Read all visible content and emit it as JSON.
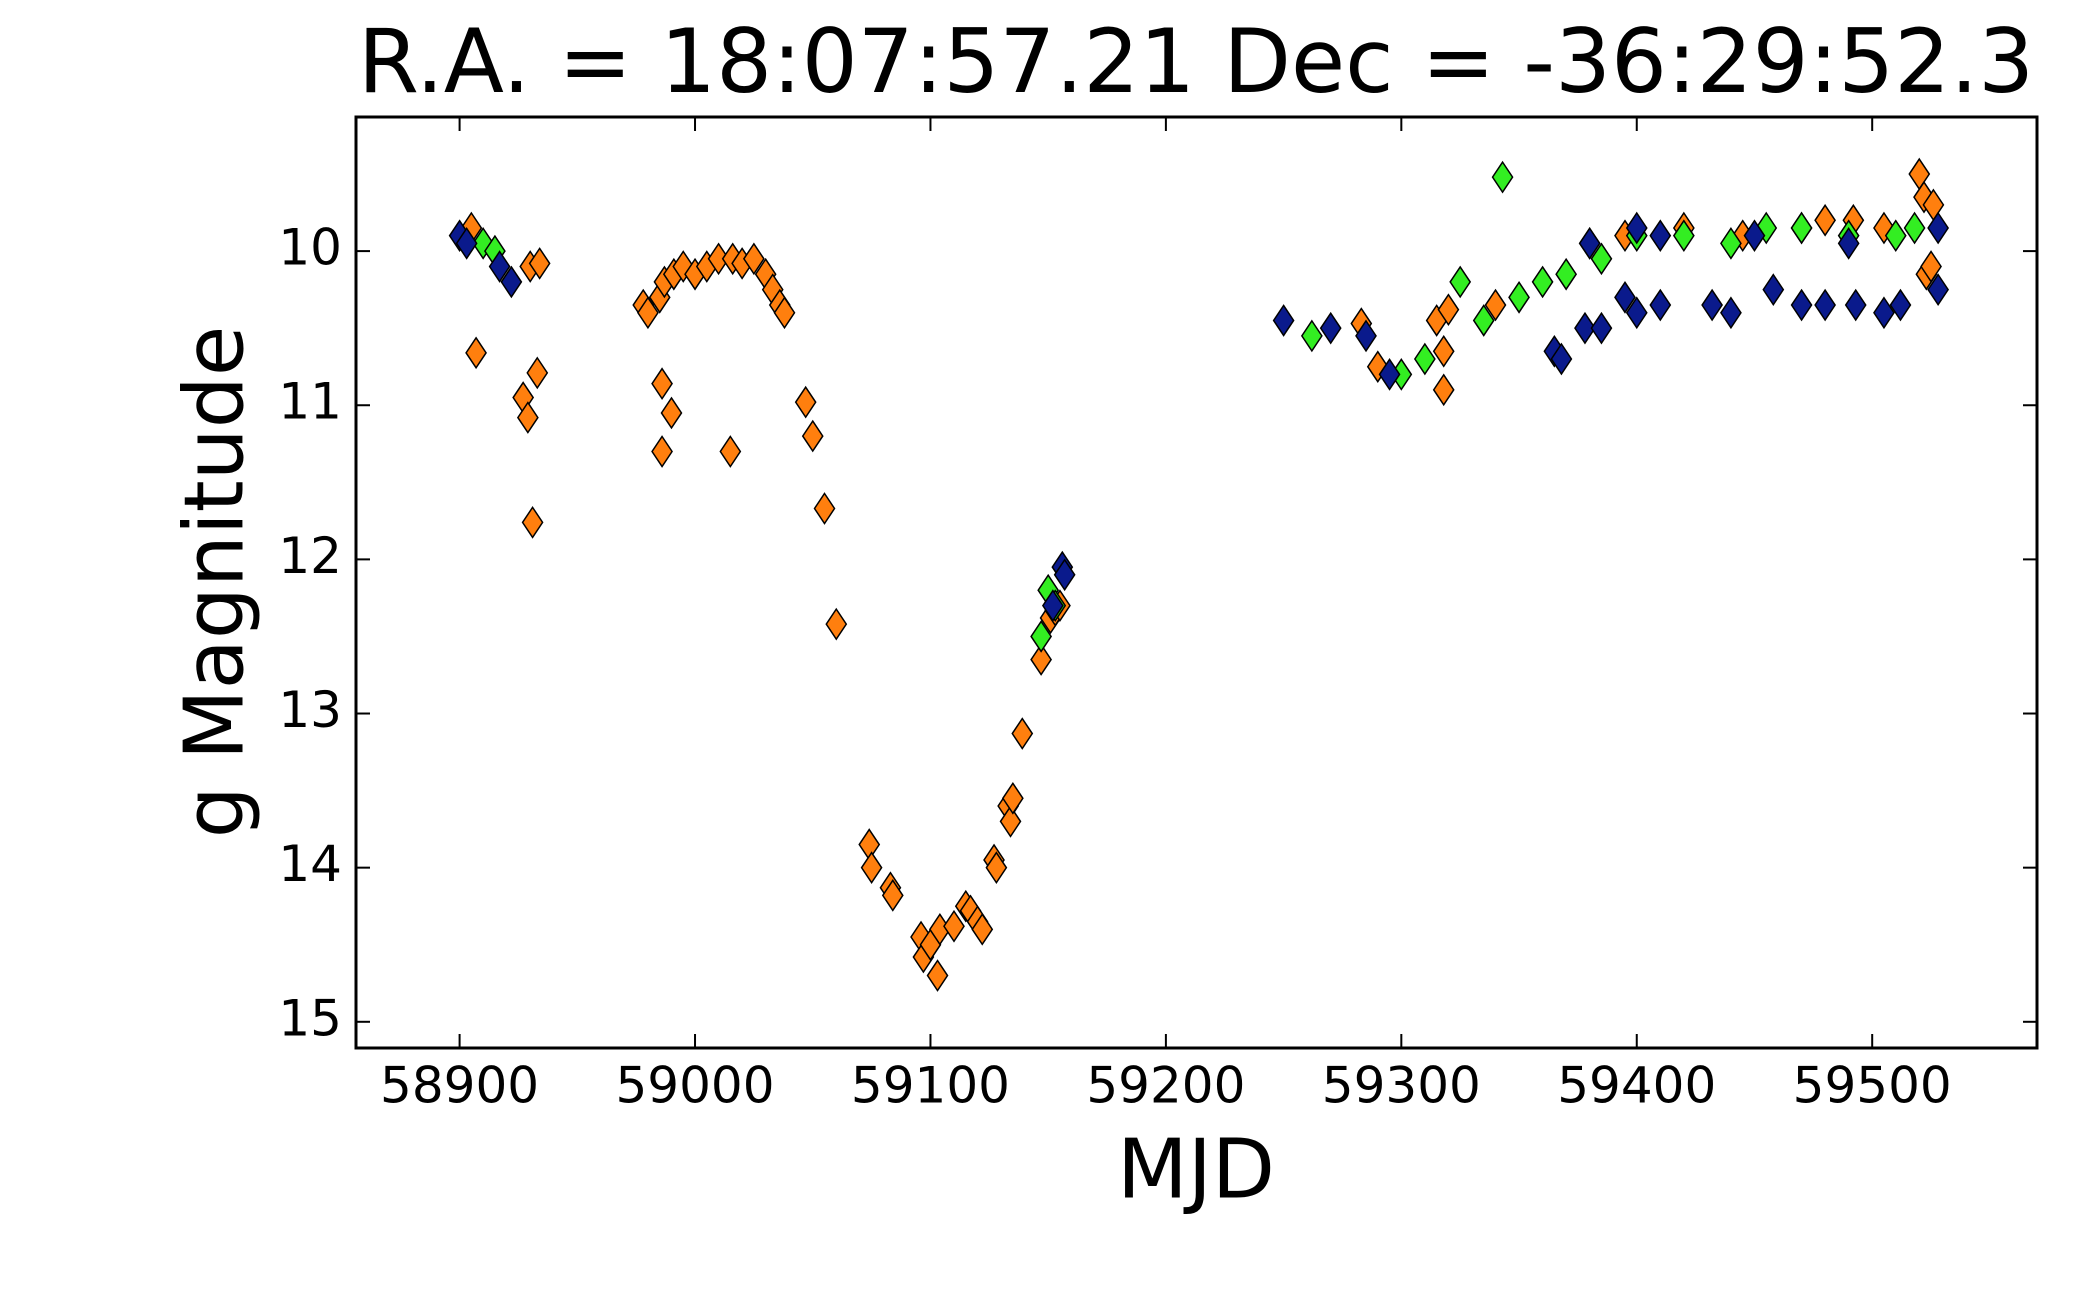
{
  "chart_data": {
    "type": "scatter",
    "title": "R.A. = 18:07:57.21   Dec = -36:29:52.3",
    "xlabel": "MJD",
    "ylabel": "g Magnitude",
    "xlim": [
      58856,
      59570
    ],
    "ylim": [
      15.17,
      9.13
    ],
    "xticks": [
      58900,
      59000,
      59100,
      59200,
      59300,
      59400,
      59500
    ],
    "yticks": [
      10,
      11,
      12,
      13,
      14,
      15
    ],
    "marker": "diamond",
    "series": [
      {
        "color": "#ff7f0e",
        "x": [
          58905,
          58907,
          58927,
          58929,
          58930,
          58931,
          58933,
          58934,
          58978,
          58980,
          58985,
          58987,
          58986,
          58986,
          58990,
          58991,
          58995,
          59000,
          59005,
          59010,
          59015,
          59016,
          59020,
          59025,
          59030,
          59033,
          59036,
          59038,
          59047,
          59050,
          59055,
          59060,
          59074,
          59075,
          59083,
          59084,
          59096,
          59097,
          59100,
          59103,
          59104,
          59110,
          59115,
          59117,
          59120,
          59122,
          59127,
          59128,
          59133,
          59134,
          59135,
          59139,
          59147,
          59151,
          59153,
          59155,
          59283,
          59290,
          59315,
          59318,
          59318,
          59320,
          59340,
          59380,
          59395,
          59420,
          59445,
          59470,
          59480,
          59492,
          59505,
          59520,
          59523,
          59525,
          59522,
          59526
        ],
        "values": [
          9.85,
          10.66,
          10.95,
          11.08,
          10.1,
          11.76,
          10.79,
          10.08,
          10.35,
          10.4,
          10.3,
          10.2,
          10.86,
          11.3,
          11.05,
          10.15,
          10.1,
          10.15,
          10.1,
          10.05,
          11.3,
          10.05,
          10.08,
          10.05,
          10.15,
          10.25,
          10.35,
          10.4,
          10.98,
          11.2,
          11.67,
          12.42,
          13.85,
          14.0,
          14.13,
          14.18,
          14.45,
          14.58,
          14.5,
          14.7,
          14.4,
          14.38,
          14.25,
          14.28,
          14.35,
          14.4,
          13.95,
          14.0,
          13.6,
          13.7,
          13.55,
          13.13,
          12.65,
          12.38,
          12.33,
          12.3,
          10.47,
          10.75,
          10.45,
          10.65,
          10.9,
          10.38,
          10.35,
          9.95,
          9.9,
          9.85,
          9.9,
          9.85,
          9.8,
          9.8,
          9.85,
          9.5,
          10.15,
          10.1,
          9.65,
          9.7
        ]
      },
      {
        "color": "#33ee22",
        "x": [
          58910,
          58915,
          59147,
          59150,
          59153,
          59262,
          59300,
          59310,
          59325,
          59335,
          59343,
          59350,
          59360,
          59370,
          59385,
          59400,
          59420,
          59440,
          59455,
          59470,
          59490,
          59510,
          59518
        ],
        "values": [
          9.95,
          10.0,
          12.5,
          12.2,
          12.3,
          10.55,
          10.8,
          10.7,
          10.2,
          10.45,
          9.52,
          10.3,
          10.2,
          10.15,
          10.05,
          9.9,
          9.9,
          9.95,
          9.85,
          9.85,
          9.9,
          9.9,
          9.85
        ]
      },
      {
        "color": "#0a1a8c",
        "x": [
          58900,
          58903,
          58917,
          58922,
          59152,
          59156,
          59157,
          59250,
          59270,
          59285,
          59295,
          59365,
          59368,
          59378,
          59385,
          59395,
          59400,
          59410,
          59432,
          59440,
          59458,
          59470,
          59480,
          59493,
          59505,
          59512,
          59528,
          59528,
          59380,
          59400,
          59410,
          59450,
          59490
        ],
        "values": [
          9.9,
          9.95,
          10.1,
          10.2,
          12.3,
          12.05,
          12.1,
          10.45,
          10.5,
          10.55,
          10.8,
          10.65,
          10.7,
          10.5,
          10.5,
          10.3,
          10.4,
          10.35,
          10.35,
          10.4,
          10.25,
          10.35,
          10.35,
          10.35,
          10.4,
          10.35,
          10.25,
          9.85,
          9.95,
          9.85,
          9.9,
          9.9,
          9.95
        ]
      }
    ]
  }
}
